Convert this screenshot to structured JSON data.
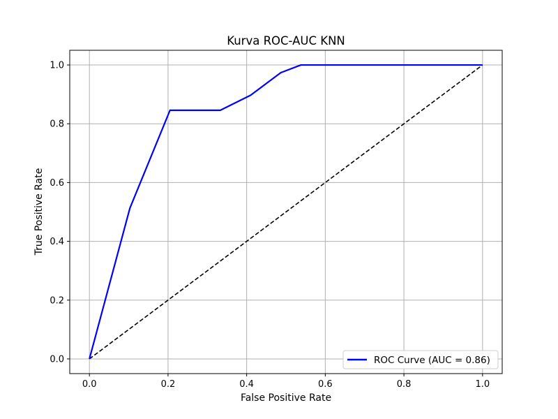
{
  "chart_data": {
    "type": "line",
    "title": "Kurva ROC-AUC KNN",
    "xlabel": "False Positive Rate",
    "ylabel": "True Positive Rate",
    "xlim": [
      -0.05,
      1.05
    ],
    "ylim": [
      -0.05,
      1.05
    ],
    "x_ticks": [
      0.0,
      0.2,
      0.4,
      0.6,
      0.8,
      1.0
    ],
    "y_ticks": [
      0.0,
      0.2,
      0.4,
      0.6,
      0.8,
      1.0
    ],
    "x_tick_labels": [
      "0.0",
      "0.2",
      "0.4",
      "0.6",
      "0.8",
      "1.0"
    ],
    "y_tick_labels": [
      "0.0",
      "0.2",
      "0.4",
      "0.6",
      "0.8",
      "1.0"
    ],
    "grid": true,
    "legend_position": "lower-right",
    "series": [
      {
        "name": "ROC Curve (AUC = 0.86)",
        "color": "#0000ff",
        "line_style": "solid",
        "x": [
          0.0,
          0.103,
          0.205,
          0.333,
          0.41,
          0.462,
          0.487,
          0.538,
          1.0
        ],
        "y": [
          0.0,
          0.513,
          0.846,
          0.846,
          0.897,
          0.949,
          0.974,
          1.0,
          1.0
        ]
      },
      {
        "color": "#000000",
        "line_style": "dashed",
        "x": [
          0.0,
          1.0
        ],
        "y": [
          0.0,
          1.0
        ]
      }
    ]
  }
}
